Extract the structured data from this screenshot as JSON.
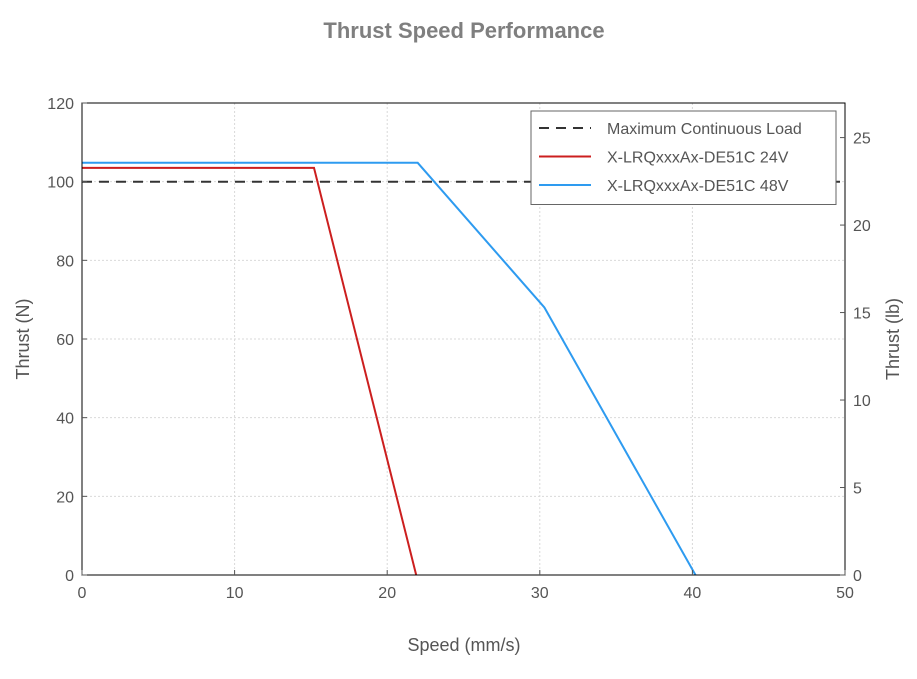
{
  "chart_data": {
    "type": "line",
    "title": "Thrust Speed Performance",
    "xlabel": "Speed (mm/s)",
    "ylabel": "Thrust (N)",
    "y2label": "Thrust (lb)",
    "xlim": [
      0,
      50
    ],
    "ylim": [
      0,
      120
    ],
    "y2lim": [
      0,
      26.977
    ],
    "x_ticks": [
      "0",
      "10",
      "20",
      "30",
      "40",
      "50"
    ],
    "y_ticks": [
      "0",
      "20",
      "40",
      "60",
      "80",
      "100",
      "120"
    ],
    "y2_ticks": [
      "0",
      "5",
      "10",
      "15",
      "20",
      "25"
    ],
    "grid": true,
    "legend_position": "top-right",
    "series": [
      {
        "name": "Maximum Continuous Load",
        "color": "#333333",
        "dash": true,
        "x": [
          0,
          50
        ],
        "y": [
          100,
          100
        ]
      },
      {
        "name": "X-LRQxxxAx-DE51C 24V",
        "color": "#cc1f1f",
        "dash": false,
        "x": [
          0,
          15.2,
          21.9
        ],
        "y": [
          103.5,
          103.5,
          0
        ]
      },
      {
        "name": "X-LRQxxxAx-DE51C 48V",
        "color": "#2e9bf0",
        "dash": false,
        "x": [
          0,
          22,
          30.3,
          40.2
        ],
        "y": [
          104.8,
          104.8,
          68,
          0
        ]
      }
    ]
  }
}
